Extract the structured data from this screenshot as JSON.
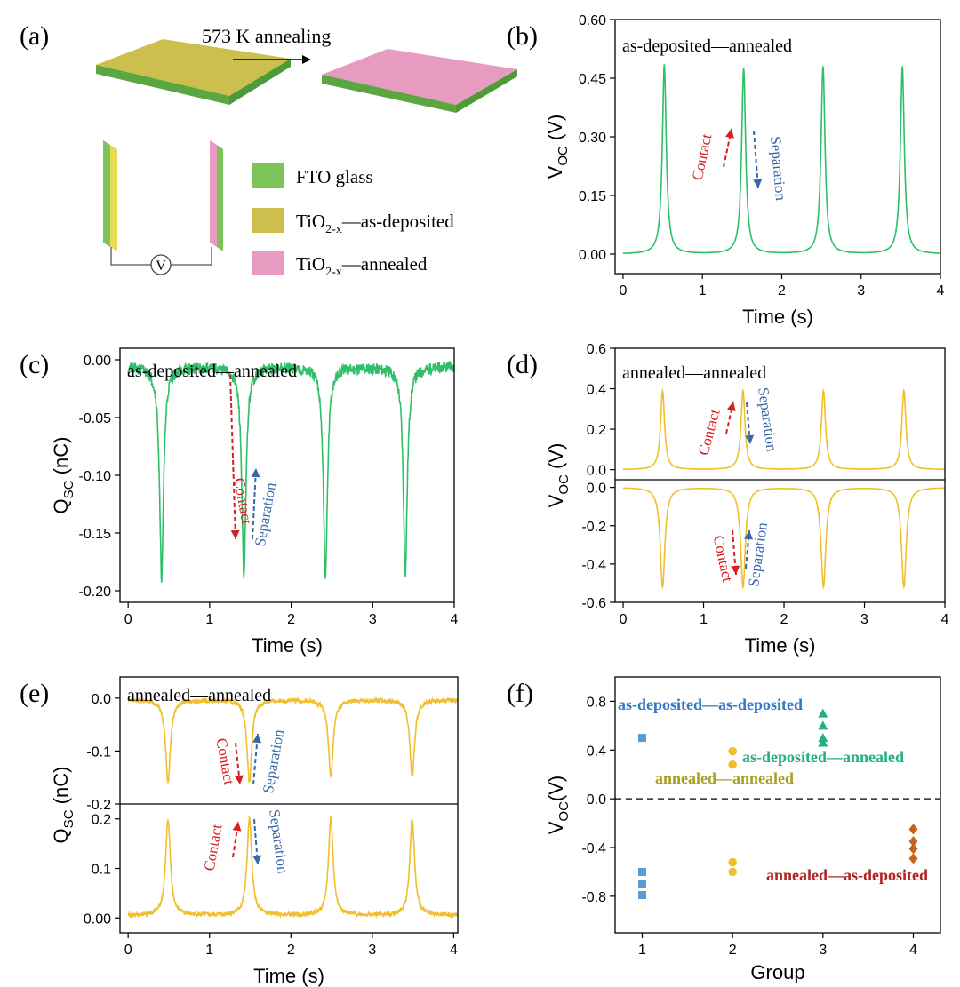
{
  "colors": {
    "green": "#2fbf6a",
    "yellow": "#f2be2c",
    "pink": "#e79bc0",
    "olive": "#cdbf4e",
    "fto": "#7cc35a",
    "red": "#d62020",
    "blue": "#3a67a8",
    "teal": "#25b07e",
    "olive_text": "#a8a01e",
    "dark_red": "#b22222",
    "square_blue": "#5b9bd5",
    "diamond": "#c8621b",
    "axis": "#000000"
  },
  "panel_a": {
    "label": "(a)",
    "arrow_label": "573 K annealing",
    "voltmeter": "V",
    "legend": [
      {
        "text": "FTO glass",
        "color": "fto"
      },
      {
        "text": "TiO",
        "sub": "2-x",
        "tail": "—as-deposited",
        "color": "olive"
      },
      {
        "text": "TiO",
        "sub": "2-x",
        "tail": "—annealed",
        "color": "pink"
      }
    ]
  },
  "chart_data": [
    {
      "id": "b",
      "label": "(b)",
      "type": "line",
      "annotation": "as-deposited—annealed",
      "xlabel": "Time (s)",
      "ylabel": "V",
      "ylabel_sub": "OC",
      "ylabel_unit": " (V)",
      "xlim": [
        -0.1,
        4.0
      ],
      "ylim": [
        -0.05,
        0.6
      ],
      "xticks": [
        0,
        1,
        2,
        3,
        4
      ],
      "yticks": [
        0.0,
        0.15,
        0.3,
        0.45,
        0.6
      ],
      "ytick_labels": [
        "0.00",
        "0.15",
        "0.30",
        "0.45",
        "0.60"
      ],
      "series": [
        {
          "color": "green",
          "base": 0.0,
          "peaks": [
            0.52,
            1.52,
            2.52,
            3.52
          ],
          "amps": [
            0.485,
            0.475,
            0.48,
            0.48
          ],
          "width": 0.03,
          "noise": 0.0,
          "sign": 1
        }
      ],
      "arrows": {
        "contact": "Contact",
        "separation": "Separation"
      }
    },
    {
      "id": "c",
      "label": "(c)",
      "type": "line",
      "annotation": "as-deposited—annealed",
      "xlabel": "Time (s)",
      "ylabel": "Q",
      "ylabel_sub": "SC",
      "ylabel_unit": " (nC)",
      "xlim": [
        -0.1,
        4.0
      ],
      "ylim": [
        -0.21,
        0.01
      ],
      "xticks": [
        0,
        1,
        2,
        3,
        4
      ],
      "yticks": [
        0.0,
        -0.05,
        -0.1,
        -0.15,
        -0.2
      ],
      "ytick_labels": [
        "0.00",
        "-0.05",
        "-0.10",
        "-0.15",
        "-0.20"
      ],
      "series": [
        {
          "color": "green",
          "base": -0.006,
          "peaks": [
            0.41,
            1.42,
            2.42,
            3.4
          ],
          "amps": [
            -0.182,
            -0.184,
            -0.183,
            -0.177
          ],
          "width": 0.03,
          "noise": 0.005,
          "sign": -1
        }
      ],
      "arrows": {
        "contact": "Contact",
        "separation": "Separation"
      }
    },
    {
      "id": "d",
      "label": "(d)",
      "type": "line",
      "annotation": "annealed—annealed",
      "xlabel": "Time (s)",
      "ylabel": "V",
      "ylabel_sub": "OC",
      "ylabel_unit": " (V)",
      "xlim": [
        -0.1,
        4.0
      ],
      "subplots": [
        {
          "ylim": [
            -0.05,
            0.6
          ],
          "yticks": [
            0.0,
            0.2,
            0.4,
            0.6
          ],
          "ytick_labels": [
            "0.0",
            "0.2",
            "0.4",
            "0.6"
          ],
          "series": [
            {
              "color": "yellow",
              "base": 0.0,
              "peaks": [
                0.49,
                1.49,
                2.49,
                3.49
              ],
              "amps": [
                0.39,
                0.39,
                0.39,
                0.39
              ],
              "width": 0.03,
              "noise": 0.0
            }
          ]
        },
        {
          "ylim": [
            -0.6,
            0.04
          ],
          "yticks": [
            0.0,
            -0.2,
            -0.4,
            -0.6
          ],
          "ytick_labels": [
            "0.0",
            "-0.2",
            "-0.4",
            "-0.6"
          ],
          "series": [
            {
              "color": "yellow",
              "base": 0.0,
              "peaks": [
                0.49,
                1.49,
                2.49,
                3.49
              ],
              "amps": [
                -0.52,
                -0.52,
                -0.52,
                -0.52
              ],
              "width": 0.035,
              "noise": 0.0
            }
          ]
        }
      ],
      "xticks": [
        0,
        1,
        2,
        3,
        4
      ],
      "arrows": {
        "contact": "Contact",
        "separation": "Separation"
      }
    },
    {
      "id": "e",
      "label": "(e)",
      "type": "line",
      "annotation": "annealed—annealed",
      "xlabel": "Time (s)",
      "ylabel": "Q",
      "ylabel_sub": "SC",
      "ylabel_unit": " (nC)",
      "xlim": [
        -0.1,
        4.05
      ],
      "subplots": [
        {
          "ylim": [
            -0.2,
            0.04
          ],
          "yticks": [
            0.0,
            -0.1,
            -0.2
          ],
          "ytick_labels": [
            "0.0",
            "-0.1",
            "-0.2"
          ],
          "series": [
            {
              "color": "yellow",
              "base": -0.003,
              "peaks": [
                0.49,
                1.49,
                2.49,
                3.49
              ],
              "amps": [
                -0.155,
                -0.155,
                -0.145,
                -0.145
              ],
              "width": 0.035,
              "noise": 0.004
            }
          ]
        },
        {
          "ylim": [
            -0.03,
            0.23
          ],
          "yticks": [
            0.0,
            0.1,
            0.2
          ],
          "ytick_labels": [
            "0.00",
            "0.1",
            "0.2"
          ],
          "series": [
            {
              "color": "yellow",
              "base": 0.005,
              "peaks": [
                0.49,
                1.49,
                2.49,
                3.49
              ],
              "amps": [
                0.195,
                0.195,
                0.195,
                0.195
              ],
              "width": 0.035,
              "noise": 0.004
            }
          ]
        }
      ],
      "xticks": [
        0,
        1,
        2,
        3,
        4
      ],
      "arrows": {
        "contact": "Contact",
        "separation": "Separation"
      }
    },
    {
      "id": "f",
      "label": "(f)",
      "type": "scatter",
      "xlabel": "Group",
      "ylabel": "V",
      "ylabel_sub": "OC",
      "ylabel_unit": "(V)",
      "xlim": [
        0.7,
        4.3
      ],
      "ylim": [
        -1.1,
        1.0
      ],
      "xticks": [
        1,
        2,
        3,
        4
      ],
      "yticks": [
        0.8,
        0.4,
        0.0,
        -0.4,
        -0.8
      ],
      "ytick_labels": [
        "0.8",
        "0.4",
        "0.0",
        "-0.4",
        "-0.8"
      ],
      "series": [
        {
          "name": "as-deposited—as-deposited",
          "marker": "square",
          "color": "square_blue",
          "label_color": "#2f78c4",
          "x": [
            1,
            1,
            1,
            1
          ],
          "y": [
            0.5,
            -0.6,
            -0.7,
            -0.79
          ]
        },
        {
          "name": "annealed—annealed",
          "marker": "circle",
          "color": "yellow",
          "label_color": "olive_text",
          "x": [
            2,
            2,
            2,
            2
          ],
          "y": [
            0.39,
            0.28,
            -0.52,
            -0.6
          ]
        },
        {
          "name": "as-deposited—annealed",
          "marker": "triangle",
          "color": "teal",
          "label_color": "teal",
          "x": [
            3,
            3,
            3,
            3
          ],
          "y": [
            0.7,
            0.6,
            0.5,
            0.46
          ]
        },
        {
          "name": "annealed—as-deposited",
          "marker": "diamond",
          "color": "diamond",
          "label_color": "dark_red",
          "x": [
            4,
            4,
            4,
            4
          ],
          "y": [
            -0.25,
            -0.35,
            -0.41,
            -0.49
          ]
        }
      ],
      "reference_line": 0.0
    }
  ]
}
